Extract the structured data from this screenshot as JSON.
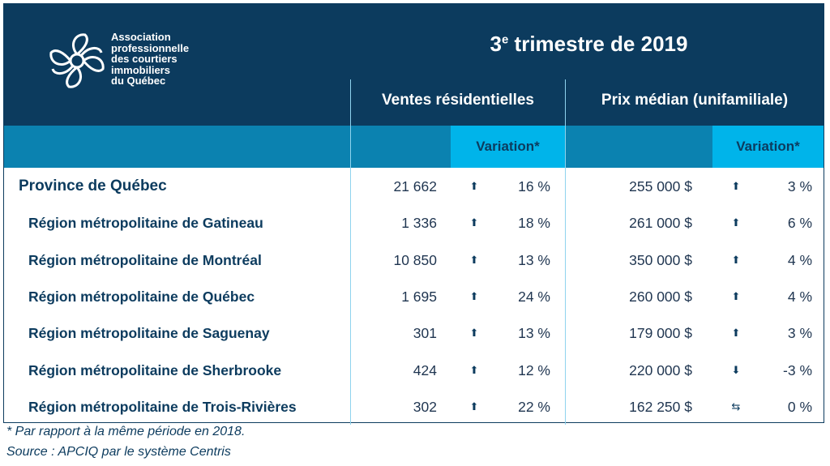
{
  "header": {
    "org_name": "Association\nprofessionnelle\ndes courtiers\nimmobiliers\ndu Québec",
    "title_number": "3",
    "title_sup": "e",
    "title_rest": " trimestre de 2019"
  },
  "columns": {
    "sales_header": "Ventes résidentielles",
    "price_header": "Prix médian (unifamiliale)",
    "variation_label": "Variation*"
  },
  "rows": [
    {
      "name": "Province de Québec",
      "sales": "21 662",
      "sales_trend": "up-arrow",
      "sales_var": "16 %",
      "price": "255 000 $",
      "price_trend": "up-arrow",
      "price_var": "3 %"
    },
    {
      "name": "Région métropolitaine de Gatineau",
      "sales": "1 336",
      "sales_trend": "up-arrow",
      "sales_var": "18 %",
      "price": "261 000 $",
      "price_trend": "up-arrow",
      "price_var": "6 %"
    },
    {
      "name": "Région métropolitaine de Montréal",
      "sales": "10 850",
      "sales_trend": "up-arrow",
      "sales_var": "13 %",
      "price": "350 000 $",
      "price_trend": "up-arrow",
      "price_var": "4 %"
    },
    {
      "name": "Région métropolitaine de Québec",
      "sales": "1 695",
      "sales_trend": "up-arrow",
      "sales_var": "24 %",
      "price": "260 000 $",
      "price_trend": "up-arrow",
      "price_var": "4 %"
    },
    {
      "name": "Région métropolitaine de Saguenay",
      "sales": "301",
      "sales_trend": "up-arrow",
      "sales_var": "13 %",
      "price": "179 000 $",
      "price_trend": "up-arrow",
      "price_var": "3 %"
    },
    {
      "name": "Région métropolitaine de Sherbrooke",
      "sales": "424",
      "sales_trend": "up-arrow",
      "sales_var": "12 %",
      "price": "220 000 $",
      "price_trend": "down-arrow",
      "price_var": "-3 %"
    },
    {
      "name": "Région métropolitaine de Trois-Rivières",
      "sales": "302",
      "sales_trend": "up-arrow",
      "sales_var": "22 %",
      "price": "162 250 $",
      "price_trend": "stable-arrows",
      "price_var": "0 %"
    }
  ],
  "footnotes": {
    "note": "* Par rapport à la même période en 2018.",
    "source": "Source : APCIQ par le système Centris"
  },
  "colors": {
    "navy": "#0c3b5e",
    "mid_blue": "#0b82b0",
    "cyan": "#00b4ea",
    "white": "#ffffff"
  }
}
